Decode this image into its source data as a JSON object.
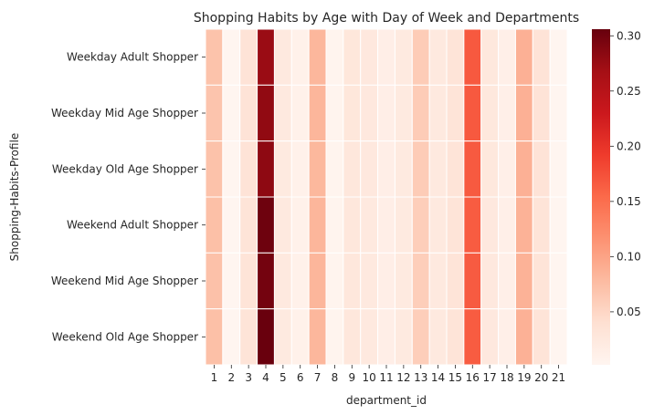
{
  "chart_data": {
    "type": "heatmap",
    "title": "Shopping Habits by Age with Day of Week and Departments",
    "xlabel": "department_id",
    "ylabel": "Shopping-Habits-Profile",
    "x": [
      "1",
      "2",
      "3",
      "4",
      "5",
      "6",
      "7",
      "8",
      "9",
      "10",
      "11",
      "12",
      "13",
      "14",
      "15",
      "16",
      "17",
      "18",
      "19",
      "20",
      "21"
    ],
    "y": [
      "Weekday Adult Shopper",
      "Weekday Mid Age Shopper",
      "Weekday Old Age Shopper",
      "Weekend Adult Shopper",
      "Weekend Mid Age Shopper",
      "Weekend Old Age Shopper"
    ],
    "values": [
      [
        0.07,
        0.002,
        0.034,
        0.275,
        0.023,
        0.009,
        0.082,
        0.004,
        0.028,
        0.025,
        0.014,
        0.022,
        0.061,
        0.024,
        0.033,
        0.168,
        0.026,
        0.012,
        0.088,
        0.034,
        0.002
      ],
      [
        0.069,
        0.002,
        0.034,
        0.28,
        0.023,
        0.009,
        0.083,
        0.004,
        0.028,
        0.025,
        0.014,
        0.022,
        0.061,
        0.024,
        0.033,
        0.168,
        0.026,
        0.012,
        0.088,
        0.034,
        0.002
      ],
      [
        0.071,
        0.002,
        0.034,
        0.282,
        0.022,
        0.009,
        0.081,
        0.004,
        0.027,
        0.025,
        0.014,
        0.022,
        0.061,
        0.024,
        0.033,
        0.167,
        0.026,
        0.012,
        0.088,
        0.034,
        0.002
      ],
      [
        0.073,
        0.002,
        0.033,
        0.302,
        0.023,
        0.009,
        0.083,
        0.004,
        0.027,
        0.024,
        0.014,
        0.022,
        0.059,
        0.024,
        0.032,
        0.165,
        0.025,
        0.012,
        0.086,
        0.033,
        0.002
      ],
      [
        0.072,
        0.002,
        0.033,
        0.298,
        0.023,
        0.009,
        0.083,
        0.004,
        0.027,
        0.024,
        0.014,
        0.022,
        0.059,
        0.024,
        0.032,
        0.166,
        0.025,
        0.012,
        0.086,
        0.033,
        0.002
      ],
      [
        0.073,
        0.002,
        0.033,
        0.305,
        0.022,
        0.009,
        0.082,
        0.004,
        0.027,
        0.024,
        0.014,
        0.022,
        0.059,
        0.024,
        0.032,
        0.165,
        0.025,
        0.012,
        0.087,
        0.033,
        0.002
      ]
    ],
    "colorbar": {
      "ticks": [
        0.05,
        0.1,
        0.15,
        0.2,
        0.25,
        0.3
      ],
      "tick_labels": [
        "0.05",
        "0.10",
        "0.15",
        "0.20",
        "0.25",
        "0.30"
      ],
      "range": [
        0.002,
        0.306
      ],
      "colormap": "Reds"
    },
    "grid": false,
    "legend": "colorbar-right"
  }
}
